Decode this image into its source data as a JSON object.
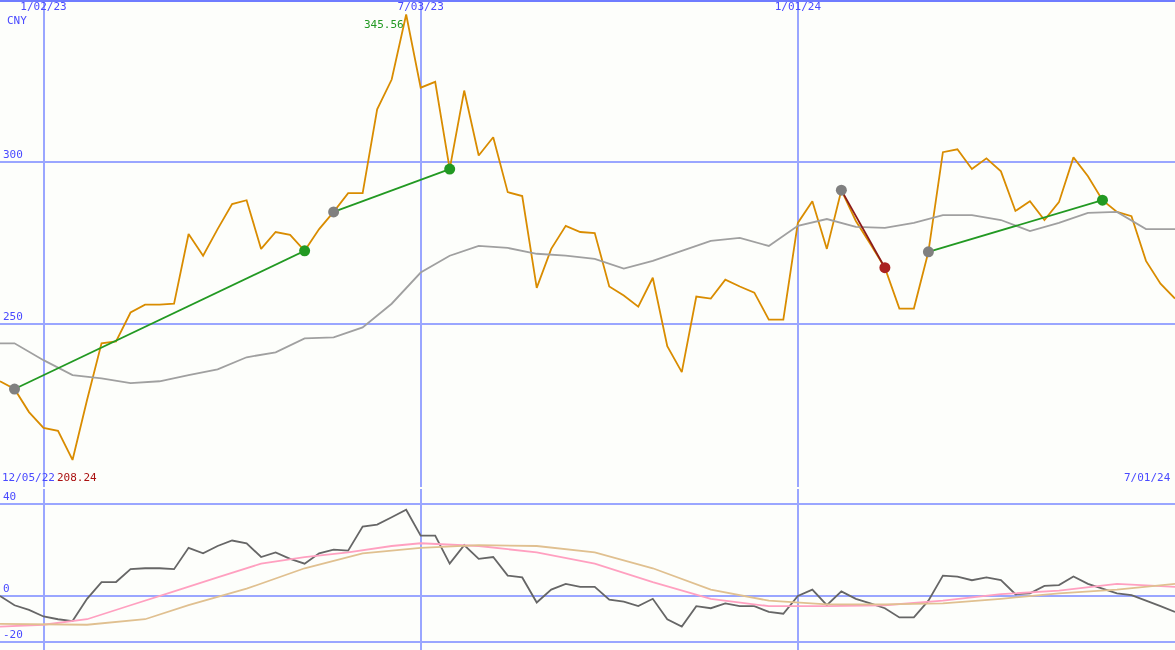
{
  "chart_data": [
    {
      "type": "line",
      "xlim": [
        "2022-12-12",
        "2024-07-01"
      ],
      "xticks": [
        {
          "value": "2023-01-02",
          "label": "1/02/23"
        },
        {
          "value": "2023-07-03",
          "label": "7/03/23"
        },
        {
          "value": "2024-01-01",
          "label": "1/01/24"
        }
      ],
      "ylim": [
        200,
        349.4
      ],
      "yticks": [
        250,
        300
      ],
      "grid": true,
      "x": [
        "2022-12-12",
        "2022-12-19",
        "2022-12-26",
        "2023-01-02",
        "2023-01-09",
        "2023-01-16",
        "2023-01-23",
        "2023-01-30",
        "2023-02-06",
        "2023-02-13",
        "2023-02-20",
        "2023-02-27",
        "2023-03-06",
        "2023-03-13",
        "2023-03-20",
        "2023-03-27",
        "2023-04-03",
        "2023-04-10",
        "2023-04-17",
        "2023-04-24",
        "2023-05-01",
        "2023-05-08",
        "2023-05-15",
        "2023-05-22",
        "2023-05-29",
        "2023-06-05",
        "2023-06-12",
        "2023-06-19",
        "2023-06-26",
        "2023-07-03",
        "2023-07-10",
        "2023-07-17",
        "2023-07-24",
        "2023-07-31",
        "2023-08-07",
        "2023-08-14",
        "2023-08-21",
        "2023-08-28",
        "2023-09-04",
        "2023-09-11",
        "2023-09-18",
        "2023-09-25",
        "2023-10-02",
        "2023-10-09",
        "2023-10-16",
        "2023-10-23",
        "2023-10-30",
        "2023-11-06",
        "2023-11-13",
        "2023-11-20",
        "2023-11-27",
        "2023-12-04",
        "2023-12-11",
        "2023-12-18",
        "2023-12-25",
        "2024-01-01",
        "2024-01-08",
        "2024-01-15",
        "2024-01-22",
        "2024-01-29",
        "2024-02-05",
        "2024-02-12",
        "2024-02-19",
        "2024-02-26",
        "2024-03-04",
        "2024-03-11",
        "2024-03-18",
        "2024-03-25",
        "2024-04-01",
        "2024-04-08",
        "2024-04-15",
        "2024-04-22",
        "2024-04-29",
        "2024-05-06",
        "2024-05-13",
        "2024-05-20",
        "2024-05-27",
        "2024-06-03",
        "2024-06-10",
        "2024-06-17",
        "2024-06-24",
        "2024-07-01"
      ],
      "series": [
        {
          "color": "#d98c00",
          "values": [
            232.5,
            230.1,
            223.0,
            218.1,
            217.2,
            208.24,
            226.7,
            244.2,
            244.8,
            253.7,
            256.1,
            256.1,
            256.4,
            277.9,
            271.2,
            279.4,
            287.1,
            288.3,
            273.3,
            278.5,
            277.6,
            272.7,
            279.4,
            284.7,
            290.5,
            290.5,
            316.3,
            325.5,
            345.56,
            323.0,
            324.8,
            297.9,
            322.1,
            302.1,
            307.7,
            290.8,
            289.6,
            261.3,
            273.3,
            280.4,
            278.5,
            278.2,
            261.7,
            258.9,
            255.5,
            264.4,
            243.3,
            235.3,
            258.6,
            258.0,
            263.8,
            261.7,
            259.8,
            251.5,
            251.5,
            281.3,
            288.0,
            273.3,
            291.4,
            281.9,
            274.8,
            267.5,
            254.9,
            254.9,
            272.4,
            303.1,
            304.0,
            297.9,
            301.2,
            297.2,
            285.0,
            288.0,
            282.2,
            287.7,
            301.5,
            295.7,
            288.3,
            284.7,
            283.4,
            269.6,
            262.6,
            258.0
          ]
        },
        {
          "color": "#a0a0a0",
          "x": [
            "2022-12-12",
            "2022-12-19",
            "2023-01-02",
            "2023-01-16",
            "2023-01-30",
            "2023-02-13",
            "2023-02-27",
            "2023-03-13",
            "2023-03-27",
            "2023-04-10",
            "2023-04-24",
            "2023-05-08",
            "2023-05-22",
            "2023-06-05",
            "2023-06-19",
            "2023-07-03",
            "2023-07-17",
            "2023-07-31",
            "2023-08-14",
            "2023-08-28",
            "2023-09-11",
            "2023-09-25",
            "2023-10-09",
            "2023-10-23",
            "2023-11-06",
            "2023-11-20",
            "2023-12-04",
            "2023-12-18",
            "2024-01-01",
            "2024-01-15",
            "2024-01-29",
            "2024-02-12",
            "2024-02-26",
            "2024-03-11",
            "2024-03-25",
            "2024-04-08",
            "2024-04-22",
            "2024-05-06",
            "2024-05-20",
            "2024-06-03",
            "2024-06-17",
            "2024-07-01"
          ],
          "values": [
            244.2,
            244.2,
            239.0,
            234.4,
            233.4,
            231.9,
            232.5,
            234.4,
            236.2,
            239.9,
            241.4,
            245.7,
            246.0,
            249.1,
            256.4,
            266.0,
            271.2,
            274.2,
            273.6,
            271.8,
            271.2,
            270.2,
            267.2,
            269.6,
            272.7,
            275.8,
            276.7,
            274.2,
            280.4,
            282.5,
            280.1,
            279.8,
            281.3,
            283.7,
            283.7,
            282.2,
            278.8,
            281.3,
            284.4,
            284.7,
            279.4,
            279.4
          ]
        },
        {
          "color": "#229922",
          "x": [
            "2022-12-19",
            "2023-05-08"
          ],
          "values": [
            230.1,
            272.7
          ],
          "marker": "circle",
          "colors": [
            "#808080",
            "#229922"
          ]
        },
        {
          "color": "#229922",
          "x": [
            "2023-05-22",
            "2023-07-17"
          ],
          "values": [
            284.7,
            297.9
          ],
          "marker": "circle",
          "colors": [
            "#808080",
            "#229922"
          ]
        },
        {
          "color": "#8b1a1a",
          "x": [
            "2024-01-22",
            "2024-02-12"
          ],
          "values": [
            291.4,
            267.5
          ],
          "marker": "circle",
          "colors": [
            "#808080",
            "#aa2222"
          ]
        },
        {
          "color": "#229922",
          "x": [
            "2024-03-04",
            "2024-05-27"
          ],
          "values": [
            272.4,
            288.3
          ],
          "marker": "circle",
          "colors": [
            "#808080",
            "#229922"
          ]
        }
      ],
      "annotations": [
        "CNY",
        "12/05/22",
        "208.24",
        "7/01/24",
        {
          "text": "345.56",
          "x": "2023-06-26",
          "y": 345.56
        }
      ]
    },
    {
      "type": "line",
      "xlim": [
        "2022-12-12",
        "2024-07-01"
      ],
      "xticks": [
        {
          "value": "2023-01-02",
          "label": null
        },
        {
          "value": "2023-07-03",
          "label": null
        },
        {
          "value": "2024-01-01",
          "label": null
        }
      ],
      "ylim": [
        -23.5,
        46.5
      ],
      "yticks": [
        -20,
        0,
        40
      ],
      "grid": true,
      "tick_labels": "y",
      "series": [
        {
          "color": "#666666",
          "x": [
            "2022-12-12",
            "2022-12-19",
            "2022-12-26",
            "2023-01-02",
            "2023-01-09",
            "2023-01-16",
            "2023-01-23",
            "2023-01-30",
            "2023-02-06",
            "2023-02-13",
            "2023-02-20",
            "2023-02-27",
            "2023-03-06",
            "2023-03-13",
            "2023-03-20",
            "2023-03-27",
            "2023-04-03",
            "2023-04-10",
            "2023-04-17",
            "2023-04-24",
            "2023-05-01",
            "2023-05-08",
            "2023-05-15",
            "2023-05-22",
            "2023-05-29",
            "2023-06-05",
            "2023-06-12",
            "2023-06-19",
            "2023-06-26",
            "2023-07-03",
            "2023-07-10",
            "2023-07-17",
            "2023-07-24",
            "2023-07-31",
            "2023-08-07",
            "2023-08-14",
            "2023-08-21",
            "2023-08-28",
            "2023-09-04",
            "2023-09-11",
            "2023-09-18",
            "2023-09-25",
            "2023-10-02",
            "2023-10-09",
            "2023-10-16",
            "2023-10-23",
            "2023-10-30",
            "2023-11-06",
            "2023-11-13",
            "2023-11-20",
            "2023-11-27",
            "2023-12-04",
            "2023-12-11",
            "2023-12-18",
            "2023-12-25",
            "2024-01-01",
            "2024-01-08",
            "2024-01-15",
            "2024-01-22",
            "2024-01-29",
            "2024-02-05",
            "2024-02-12",
            "2024-02-19",
            "2024-02-26",
            "2024-03-04",
            "2024-03-11",
            "2024-03-18",
            "2024-03-25",
            "2024-04-01",
            "2024-04-08",
            "2024-04-15",
            "2024-04-22",
            "2024-04-29",
            "2024-05-06",
            "2024-05-13",
            "2024-05-20",
            "2024-05-27",
            "2024-06-03",
            "2024-06-10",
            "2024-06-17",
            "2024-06-24",
            "2024-07-01"
          ],
          "values": [
            0,
            -4,
            -6,
            -8.9,
            -10.1,
            -10.9,
            -1.2,
            6.1,
            6.1,
            11.7,
            12.1,
            12.1,
            11.7,
            21,
            18.6,
            21.8,
            24.2,
            23,
            17,
            19,
            16.2,
            14.1,
            18.6,
            20.2,
            19.8,
            30.3,
            31.1,
            34.3,
            37.6,
            26.3,
            26.3,
            14.1,
            22.2,
            16.2,
            17,
            8.9,
            8.1,
            -2.8,
            2.8,
            5.3,
            4,
            4,
            -1.6,
            -2.4,
            -4.4,
            -1.2,
            -10.1,
            -13.3,
            -4.4,
            -5.3,
            -3.2,
            -4.4,
            -4.4,
            -6.9,
            -7.7,
            0,
            2.8,
            -4,
            2,
            -1.2,
            -3.2,
            -5.3,
            -9.3,
            -9.3,
            -2,
            8.9,
            8.5,
            6.9,
            8.1,
            6.9,
            0.8,
            1.2,
            4.4,
            4.8,
            8.5,
            5.3,
            3.2,
            1.2,
            0.4,
            -2,
            -4.4,
            -6.9
          ]
        },
        {
          "color": "#ffa0c0",
          "x": [
            "2022-12-12",
            "2023-01-02",
            "2023-01-23",
            "2023-02-13",
            "2023-03-06",
            "2023-03-27",
            "2023-04-17",
            "2023-05-08",
            "2023-05-29",
            "2023-06-19",
            "2023-07-03",
            "2023-07-31",
            "2023-08-28",
            "2023-09-25",
            "2023-10-23",
            "2023-11-20",
            "2023-12-18",
            "2024-01-15",
            "2024-02-12",
            "2024-03-11",
            "2024-04-08",
            "2024-05-06",
            "2024-06-03",
            "2024-07-01"
          ],
          "values": [
            -13.3,
            -12.5,
            -10.1,
            -4,
            2,
            8.1,
            14.1,
            17,
            19,
            21.8,
            23,
            21.8,
            19,
            14.1,
            6.1,
            -1.2,
            -4.4,
            -4.4,
            -4,
            -2,
            0.8,
            2.4,
            5.3,
            4
          ]
        },
        {
          "color": "#e0c090",
          "x": [
            "2022-12-12",
            "2023-01-23",
            "2023-02-20",
            "2023-03-13",
            "2023-04-10",
            "2023-05-08",
            "2023-06-05",
            "2023-07-03",
            "2023-07-31",
            "2023-08-28",
            "2023-09-25",
            "2023-10-23",
            "2023-11-20",
            "2023-12-18",
            "2024-01-15",
            "2024-02-12",
            "2024-03-11",
            "2024-04-08",
            "2024-05-06",
            "2024-06-03",
            "2024-07-01"
          ],
          "values": [
            -12.1,
            -12.5,
            -10.1,
            -4,
            3.2,
            12.1,
            18.6,
            21,
            22.2,
            21.8,
            19,
            12.1,
            2.8,
            -2,
            -3.6,
            -3.6,
            -3.2,
            -1.2,
            1.2,
            2.8,
            5.3
          ]
        }
      ]
    }
  ]
}
